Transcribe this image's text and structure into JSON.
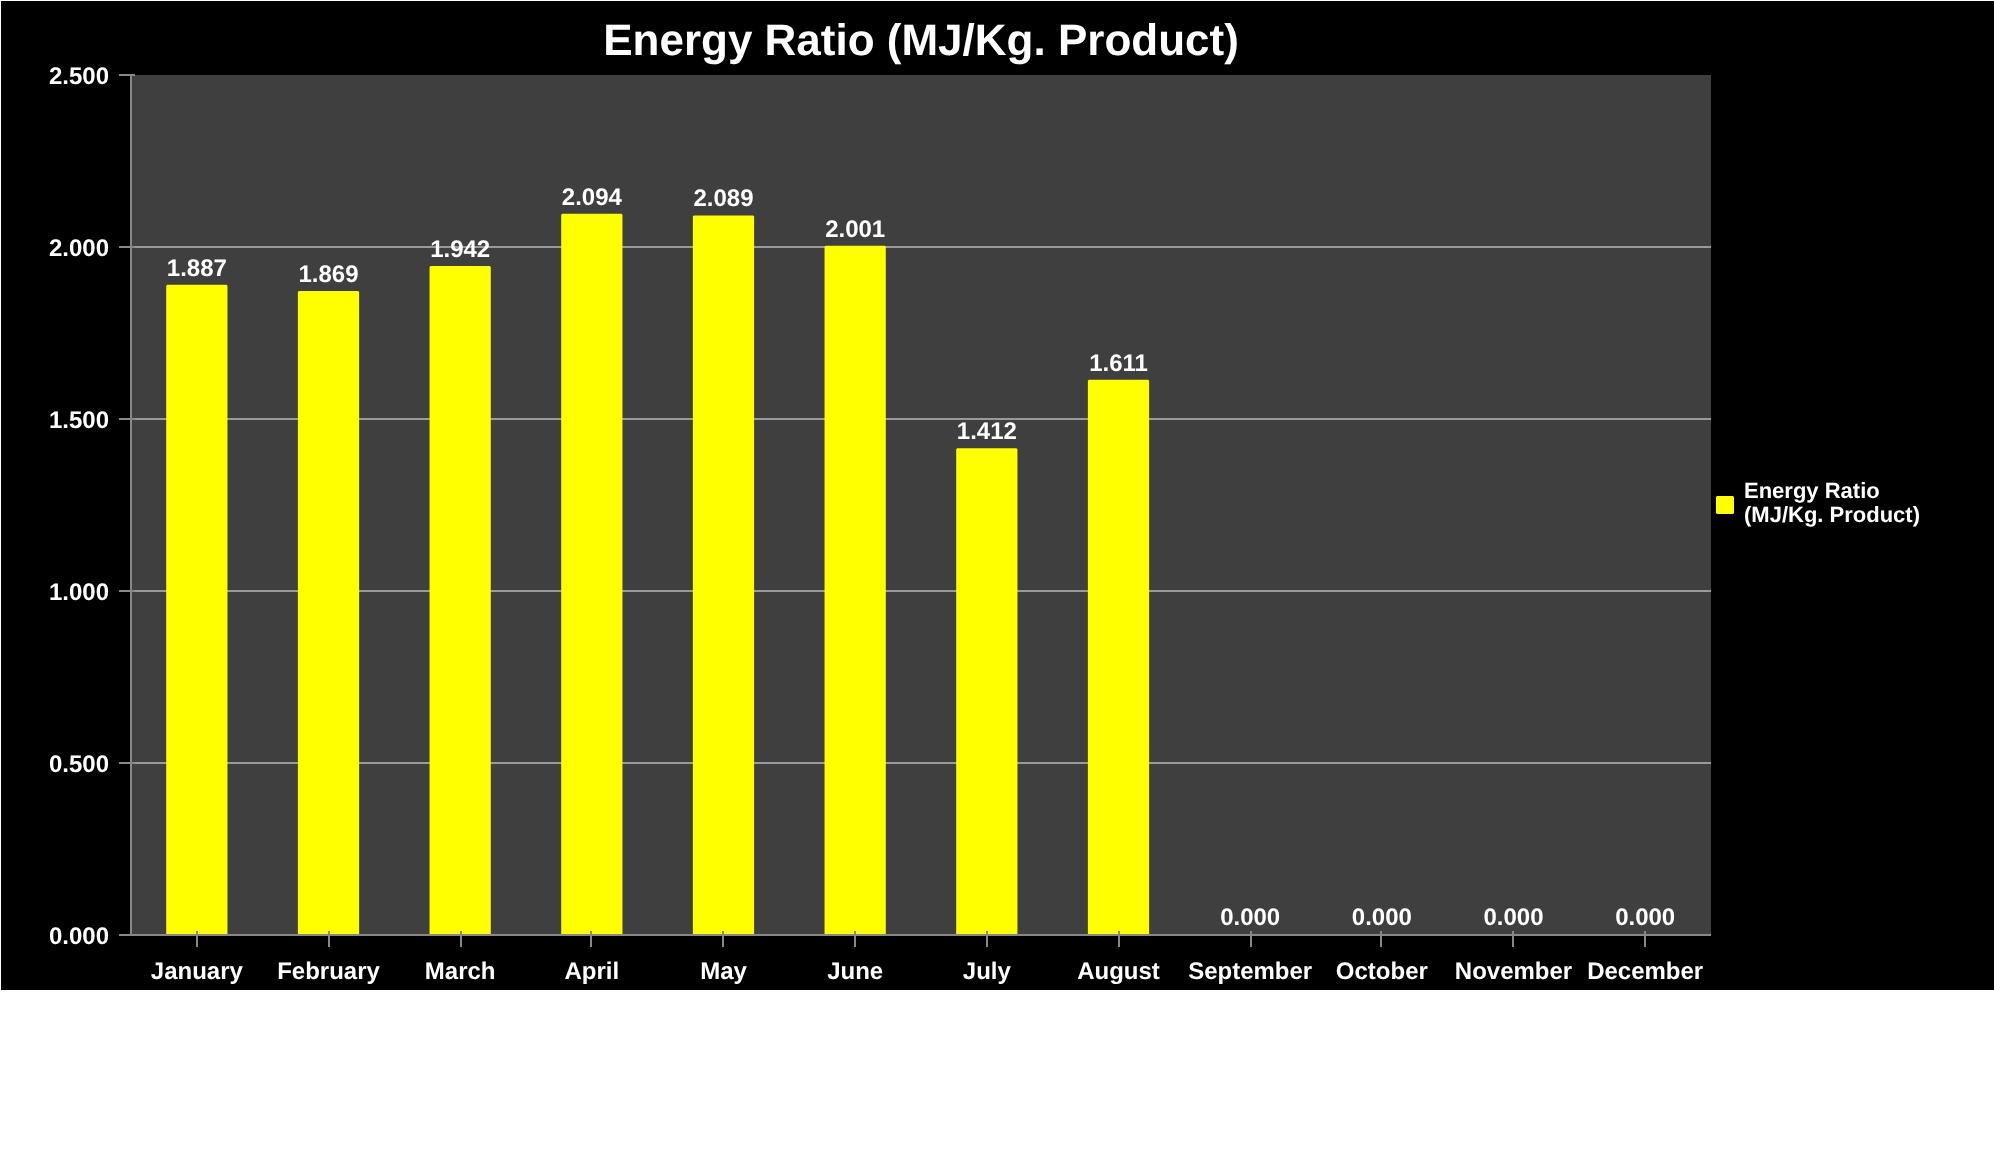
{
  "chart_data": {
    "type": "bar",
    "title": "Energy Ratio (MJ/Kg. Product)",
    "categories": [
      "January",
      "February",
      "March",
      "April",
      "May",
      "June",
      "July",
      "August",
      "September",
      "October",
      "November",
      "December"
    ],
    "series": [
      {
        "name": "Energy Ratio (MJ/Kg. Product)",
        "color": "#ffff00",
        "values": [
          1.887,
          1.869,
          1.942,
          2.094,
          2.089,
          2.001,
          1.412,
          1.611,
          0,
          0,
          0,
          0
        ],
        "value_labels": [
          "1.887",
          "1.869",
          "1.942",
          "2.094",
          "2.089",
          "2.001",
          "1.412",
          "1.611",
          "0.000",
          "0.000",
          "0.000",
          "0.000"
        ]
      }
    ],
    "ylim": [
      0,
      2.5
    ],
    "yticks": [
      {
        "value": 0,
        "label": "0.000"
      },
      {
        "value": 0.5,
        "label": "0.500"
      },
      {
        "value": 1,
        "label": "1.000"
      },
      {
        "value": 1.5,
        "label": "1.500"
      },
      {
        "value": 2,
        "label": "2.000"
      },
      {
        "value": 2.5,
        "label": "2.500"
      }
    ],
    "grid": "y",
    "legend": "right"
  }
}
